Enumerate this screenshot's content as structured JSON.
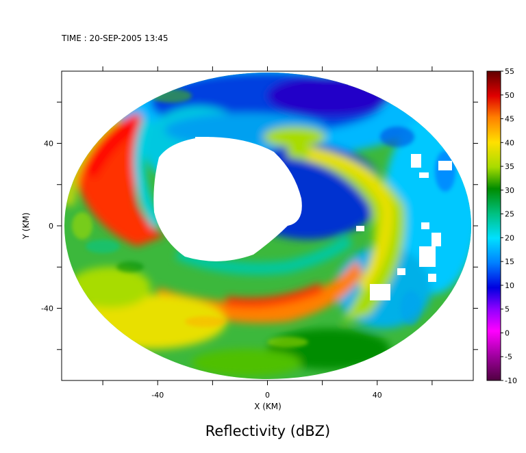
{
  "chart_data": {
    "type": "heatmap",
    "title": "Reflectivity (dBZ)",
    "time_label": "TIME : 20-SEP-2005 13:45",
    "xlabel": "X (KM)",
    "ylabel": "Y (KM)",
    "xlim": [
      -75,
      75
    ],
    "ylim": [
      -75,
      75
    ],
    "x_ticks": [
      -60,
      -40,
      -20,
      0,
      20,
      40,
      60
    ],
    "y_ticks": [
      -60,
      -40,
      -20,
      0,
      20,
      40,
      60
    ],
    "x_tick_labels": [
      {
        "value": -40,
        "label": "-40"
      },
      {
        "value": 0,
        "label": "0"
      },
      {
        "value": 40,
        "label": "40"
      }
    ],
    "y_tick_labels": [
      {
        "value": 40,
        "label": "40"
      },
      {
        "value": 0,
        "label": "0"
      },
      {
        "value": -40,
        "label": "-40"
      }
    ],
    "colorbar": {
      "min": -10,
      "max": 55,
      "labels": [
        "55",
        "50",
        "45",
        "40",
        "35",
        "30",
        "25",
        "20",
        "15",
        "10",
        "5",
        "0",
        "-5",
        "-10"
      ],
      "colors": [
        "#5a0000",
        "#9a0000",
        "#d80000",
        "#ff2a00",
        "#ff6a00",
        "#ffa000",
        "#ffd400",
        "#e8f000",
        "#a8dc00",
        "#50c000",
        "#008c00",
        "#00b070",
        "#00e0c8",
        "#00e8ff",
        "#00b0ff",
        "#0070ff",
        "#0030e0",
        "#2000c0",
        "#8000ff",
        "#d000ff",
        "#ff00ff",
        "#c000b0",
        "#800070",
        "#500040"
      ]
    },
    "domain": {
      "center": [
        0,
        0
      ],
      "radius_x": 74,
      "radius_y": 73
    },
    "no_data_region": "central eye, approx x from -42 to 15, y from -20 to 35"
  }
}
